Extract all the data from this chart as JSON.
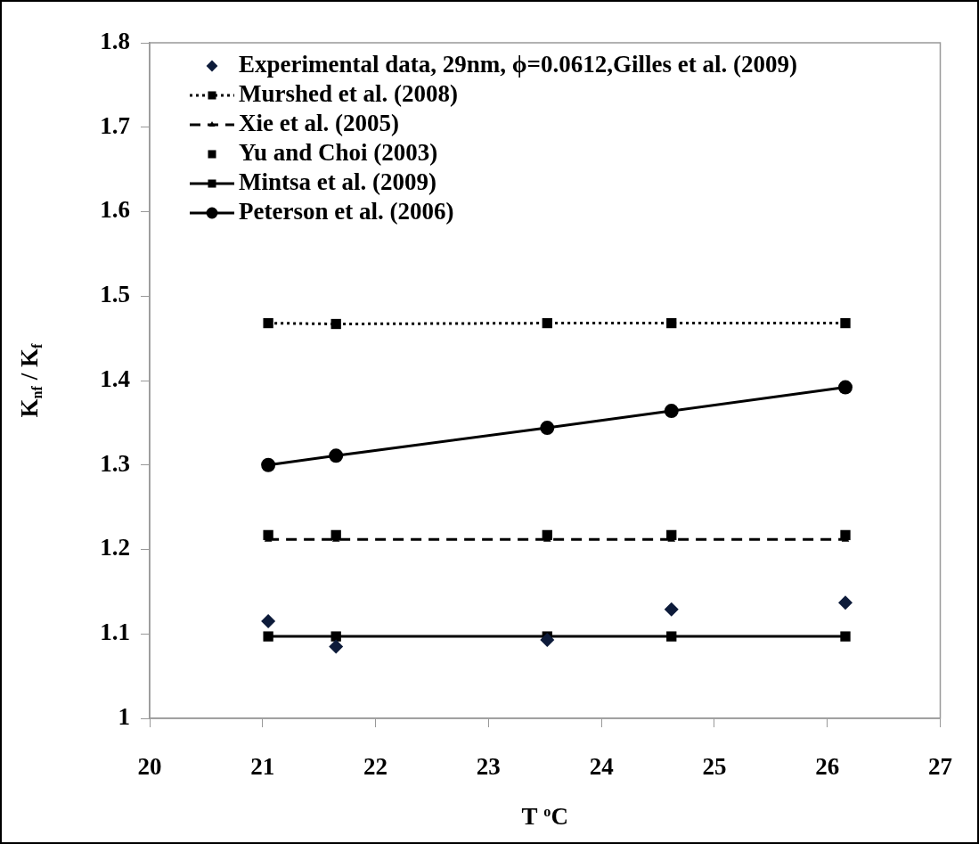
{
  "chart_data": {
    "type": "line",
    "xlabel": "T $^{o}$C",
    "ylabel": "K$_{nf}$ / K$_{f}$",
    "x": [
      21.05,
      21.65,
      23.52,
      24.62,
      26.16
    ],
    "xlim": [
      20,
      27
    ],
    "xticks": [
      20,
      21,
      22,
      23,
      24,
      25,
      26,
      27
    ],
    "ylim": [
      1,
      1.8
    ],
    "yticks": [
      1,
      1.1,
      1.2,
      1.3,
      1.4,
      1.5,
      1.6,
      1.7,
      1.8
    ],
    "grid": false,
    "legend": "top left",
    "series": [
      {
        "name": "Experimental data, 29nm, ϕ=0.0612,Gilles et al. (2009)",
        "type": "scatter",
        "marker": "diamond",
        "color": "#0d1b3a",
        "values": [
          1.115,
          1.085,
          1.093,
          1.129,
          1.137
        ]
      },
      {
        "name": "Murshed et al. (2008)",
        "marker": "square",
        "line_style": "dotted",
        "color": "#000000",
        "values": [
          1.468,
          1.467,
          1.468,
          1.468,
          1.468
        ]
      },
      {
        "name": "Xie et al. (2005)",
        "marker": "triangle",
        "line_style": "dashed",
        "color": "#000000",
        "values": [
          1.212,
          1.212,
          1.212,
          1.212,
          1.212
        ]
      },
      {
        "name": "Yu and Choi (2003)",
        "type": "scatter",
        "marker": "square",
        "color": "#000000",
        "values": [
          1.217,
          1.217,
          1.217,
          1.217,
          1.217
        ]
      },
      {
        "name": "Mintsa et al. (2009)",
        "marker": "square",
        "line_style": "solid",
        "color": "#000000",
        "values": [
          1.097,
          1.097,
          1.097,
          1.097,
          1.097
        ]
      },
      {
        "name": "Peterson et al. (2006)",
        "marker": "circle",
        "line_style": "solid",
        "color": "#000000",
        "values": [
          1.3,
          1.311,
          1.344,
          1.364,
          1.392
        ]
      }
    ]
  }
}
